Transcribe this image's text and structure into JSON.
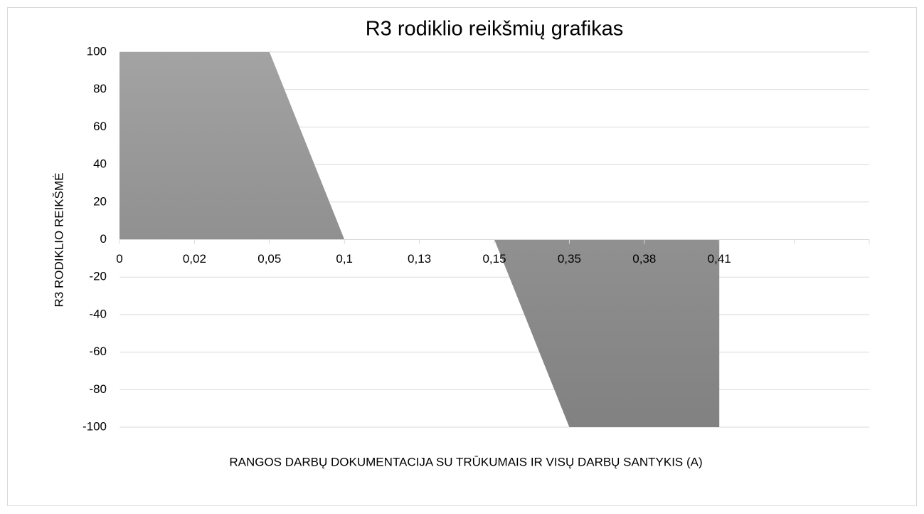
{
  "chart_data": {
    "type": "area",
    "title": "R3 rodiklio reikšmių grafikas",
    "x_label": "RANGOS DARBŲ DOKUMENTACIJA SU TRŪKUMAIS IR VISŲ DARBŲ SANTYKIS (A)",
    "y_label": "R3 RODIKLIO REIKŠMĖ",
    "categories": [
      "0",
      "0,02",
      "0,05",
      "0,1",
      "0,13",
      "0,15",
      "0,35",
      "0,38",
      "0,41",
      null
    ],
    "values": [
      100,
      100,
      100,
      0,
      0,
      0,
      -100,
      -100,
      -100,
      null
    ],
    "color": "#939393",
    "ylim": [
      -100,
      100
    ],
    "yticks": [
      -100,
      -80,
      -60,
      -40,
      -20,
      0,
      20,
      40,
      60,
      80,
      100
    ],
    "grid": true
  }
}
